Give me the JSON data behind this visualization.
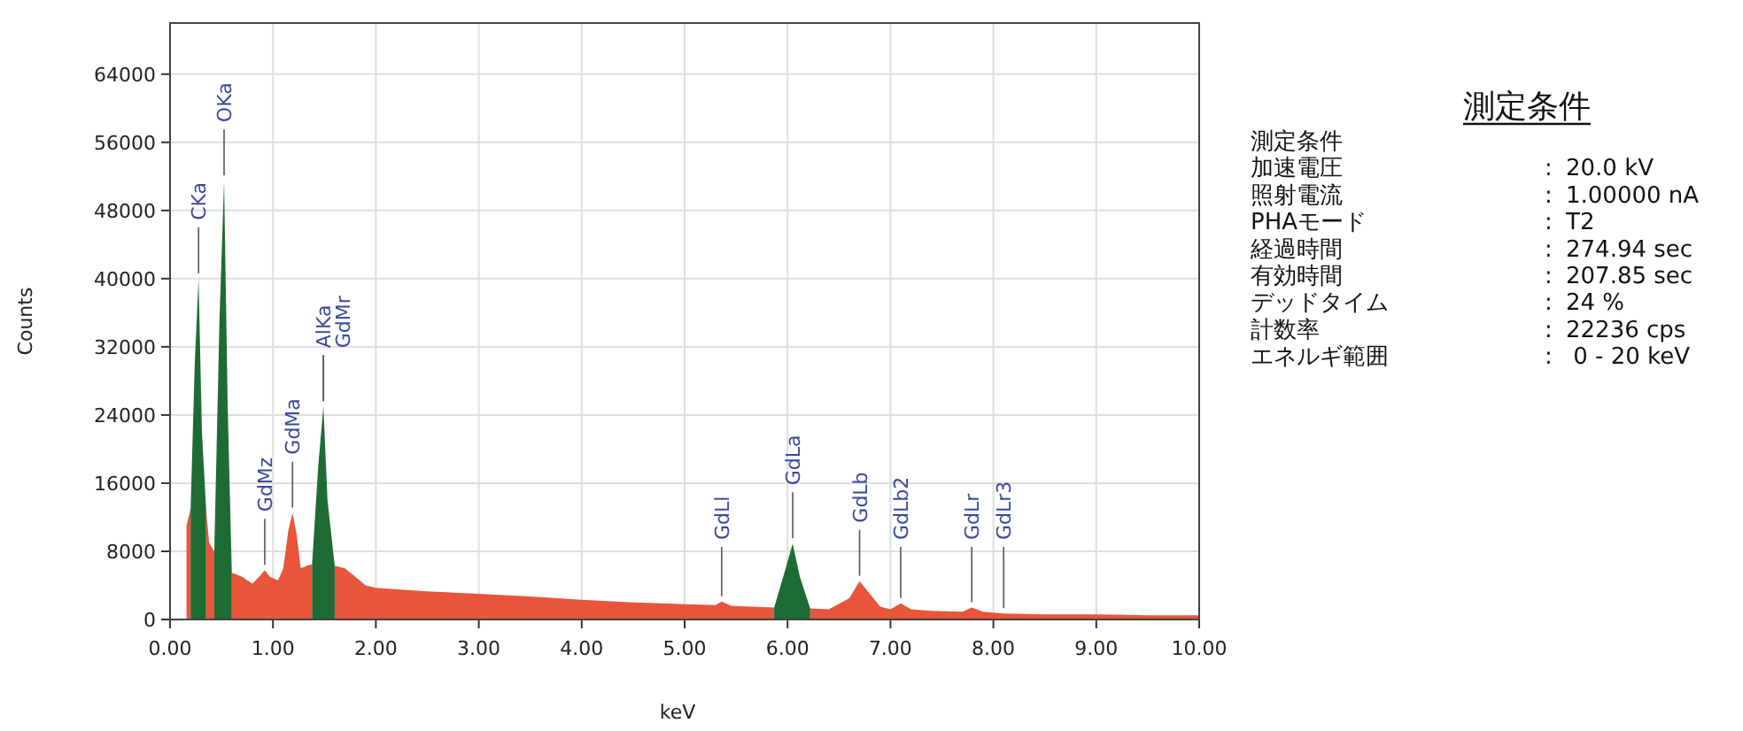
{
  "chart_data": [
    {
      "type": "area",
      "xlabel": "keV",
      "ylabel": "Counts",
      "xlim": [
        0,
        10
      ],
      "ylim": [
        0,
        70000
      ],
      "xticks": [
        {
          "value": 0,
          "label": "0.00"
        },
        {
          "value": 1,
          "label": "1.00"
        },
        {
          "value": 2,
          "label": "2.00"
        },
        {
          "value": 3,
          "label": "3.00"
        },
        {
          "value": 4,
          "label": "4.00"
        },
        {
          "value": 5,
          "label": "5.00"
        },
        {
          "value": 6,
          "label": "6.00"
        },
        {
          "value": 7,
          "label": "7.00"
        },
        {
          "value": 8,
          "label": "8.00"
        },
        {
          "value": 9,
          "label": "9.00"
        },
        {
          "value": 10,
          "label": "10.00"
        }
      ],
      "yticks": [
        0,
        8000,
        16000,
        24000,
        32000,
        40000,
        48000,
        56000,
        64000
      ],
      "grid": true,
      "series": [
        {
          "color": "#e8553a",
          "x": [
            0.16,
            0.2
          ],
          "values": [
            11000,
            13000
          ]
        },
        {
          "color": "#e8553a",
          "x": [
            0.35,
            0.38,
            0.43
          ],
          "values": [
            13000,
            9000,
            8000
          ]
        },
        {
          "color": "#e8553a",
          "x": [
            0.6,
            0.7,
            0.8,
            0.88,
            0.92,
            0.97,
            1.05,
            1.1,
            1.15,
            1.19,
            1.23,
            1.27,
            1.33,
            1.38
          ],
          "values": [
            5500,
            5000,
            4200,
            5200,
            5800,
            5000,
            4600,
            6000,
            10500,
            12500,
            10000,
            6000,
            6300,
            6500
          ]
        },
        {
          "color": "#e8553a",
          "x": [
            1.6,
            1.7,
            1.8,
            1.9,
            2.0,
            2.5,
            3.0,
            3.5,
            4.0,
            4.5,
            5.0,
            5.3,
            5.36,
            5.45,
            5.87
          ],
          "values": [
            6300,
            6000,
            5000,
            4000,
            3700,
            3300,
            3000,
            2700,
            2300,
            2000,
            1800,
            1700,
            2100,
            1600,
            1400
          ]
        },
        {
          "color": "#e8553a",
          "x": [
            6.22,
            6.4,
            6.6,
            6.7,
            6.8,
            6.9,
            7.0,
            7.1,
            7.2,
            7.4,
            7.7,
            7.79,
            7.9,
            8.1,
            8.5,
            9.0,
            9.5,
            10.0
          ],
          "values": [
            1300,
            1200,
            2500,
            4500,
            3000,
            1500,
            1200,
            1900,
            1200,
            1000,
            900,
            1400,
            900,
            700,
            600,
            600,
            500,
            500
          ]
        },
        {
          "color": "#1e6b34",
          "x": [
            0.2,
            0.24,
            0.277,
            0.31,
            0.35
          ],
          "values": [
            13000,
            30000,
            40000,
            22000,
            13000
          ]
        },
        {
          "color": "#1e6b34",
          "x": [
            0.43,
            0.48,
            0.525,
            0.56,
            0.6
          ],
          "values": [
            8000,
            35000,
            51500,
            25000,
            5500
          ]
        },
        {
          "color": "#1e6b34",
          "x": [
            1.38,
            1.44,
            1.49,
            1.53,
            1.6
          ],
          "values": [
            6500,
            18000,
            25000,
            14000,
            6300
          ]
        },
        {
          "color": "#1e6b34",
          "x": [
            5.87,
            5.97,
            6.05,
            6.12,
            6.22
          ],
          "values": [
            1400,
            5500,
            8900,
            5000,
            1300
          ]
        }
      ],
      "annotations": [
        {
          "text": "CKa",
          "x": 0.277,
          "y": 40000
        },
        {
          "text": "OKa",
          "x": 0.525,
          "y": 51500
        },
        {
          "text": "GdMz",
          "x": 0.92,
          "y": 5800
        },
        {
          "text": "GdMa",
          "x": 1.19,
          "y": 12500
        },
        {
          "text": "AlKa",
          "x": 1.49,
          "y": 25000
        },
        {
          "text": "GdMr",
          "x": 1.49,
          "y": 25000
        },
        {
          "text": "GdLl",
          "x": 5.36,
          "y": 2100
        },
        {
          "text": "GdLa",
          "x": 6.05,
          "y": 8900
        },
        {
          "text": "GdLb",
          "x": 6.7,
          "y": 4500
        },
        {
          "text": "GdLb2",
          "x": 7.1,
          "y": 1900
        },
        {
          "text": "GdLr",
          "x": 7.79,
          "y": 1400
        },
        {
          "text": "GdLr3",
          "x": 8.1,
          "y": 700
        }
      ]
    },
    {
      "type": "other",
      "title": "測定条件",
      "annotations": [
        "測定条件",
        "加速電圧 : 20.0 kV",
        "照射電流 : 1.00000 nA",
        "PHAモード : T2",
        "経過時間 : 274.94 sec",
        "有効時間 : 207.85 sec",
        "デッドタイム : 24 %",
        "計数率 : 22236 cps",
        "エネルギ範囲 :  0 - 20 keV"
      ]
    }
  ]
}
